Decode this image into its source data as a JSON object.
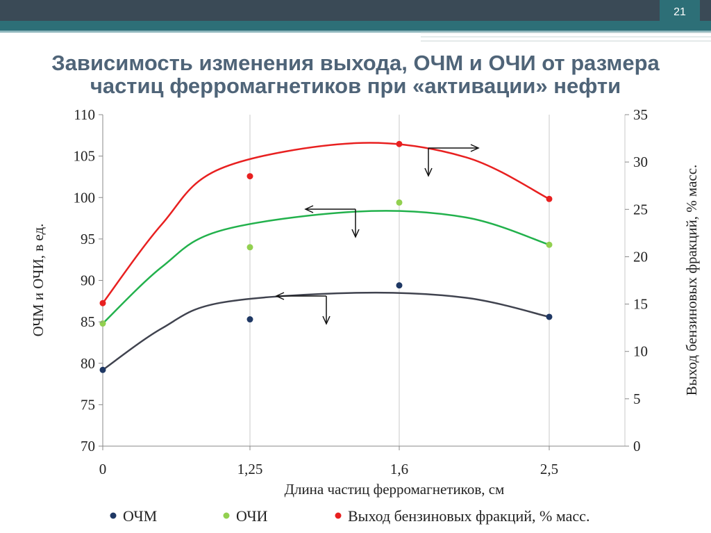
{
  "slide": {
    "number": "21"
  },
  "header": {
    "colors": {
      "dark": "#3a4a56",
      "band": "#2d6f77",
      "stripe": "#8fb7bd"
    }
  },
  "title": {
    "line1": "Зависимость изменения выхода, ОЧМ и ОЧИ от размера",
    "line2": "частиц ферромагнетиков при «активации» нефти"
  },
  "chart_data": {
    "type": "scatter",
    "x_categories": [
      "0",
      "1,25",
      "1,6",
      "2,5"
    ],
    "xlabel": "Длина частиц ферромагнетиков, см",
    "ylabel_left": "ОЧМ и ОЧИ, в ед.",
    "ylabel_right": "Выход бензиновых фракций, % масс.",
    "ylim_left": [
      70,
      110
    ],
    "yticks_left": [
      70,
      75,
      80,
      85,
      90,
      95,
      100,
      105,
      110
    ],
    "ylim_right": [
      0,
      35
    ],
    "yticks_right": [
      0,
      5,
      10,
      15,
      20,
      25,
      30,
      35
    ],
    "grid": "vertical",
    "legend_position": "bottom",
    "series": [
      {
        "name": "ОЧМ",
        "axis": "left",
        "color": "#1f3864",
        "line_color": "#40434f",
        "values": [
          79.2,
          85.3,
          89.4,
          85.6
        ],
        "trend": [
          [
            0,
            79.2
          ],
          [
            0.5,
            84.2
          ],
          [
            1.0,
            87.3
          ],
          [
            1.5,
            88.5
          ],
          [
            2.0,
            87.9
          ],
          [
            2.5,
            85.6
          ]
        ]
      },
      {
        "name": "ОЧИ",
        "axis": "left",
        "color": "#92d050",
        "line_color": "#22b14c",
        "values": [
          84.8,
          94.0,
          99.4,
          94.3
        ],
        "trend": [
          [
            0,
            84.8
          ],
          [
            0.5,
            91.6
          ],
          [
            1.0,
            96.0
          ],
          [
            1.5,
            98.3
          ],
          [
            2.0,
            97.6
          ],
          [
            2.5,
            94.3
          ]
        ]
      },
      {
        "name": "Выход бензиновых фракций, % масс.",
        "axis": "right",
        "color": "#e82020",
        "line_color": "#e82020",
        "values": [
          15.1,
          28.5,
          31.9,
          26.1
        ],
        "trend": [
          [
            0,
            15.1
          ],
          [
            0.5,
            23.4
          ],
          [
            1.0,
            29.3
          ],
          [
            1.5,
            32.0
          ],
          [
            2.0,
            30.5
          ],
          [
            2.5,
            26.1
          ]
        ]
      }
    ],
    "annotations": [
      {
        "series": "Выход бензиновых фракций, % масс.",
        "arrow": "right"
      },
      {
        "series": "ОЧИ",
        "arrow": "left"
      },
      {
        "series": "ОЧМ",
        "arrow": "left"
      }
    ]
  }
}
